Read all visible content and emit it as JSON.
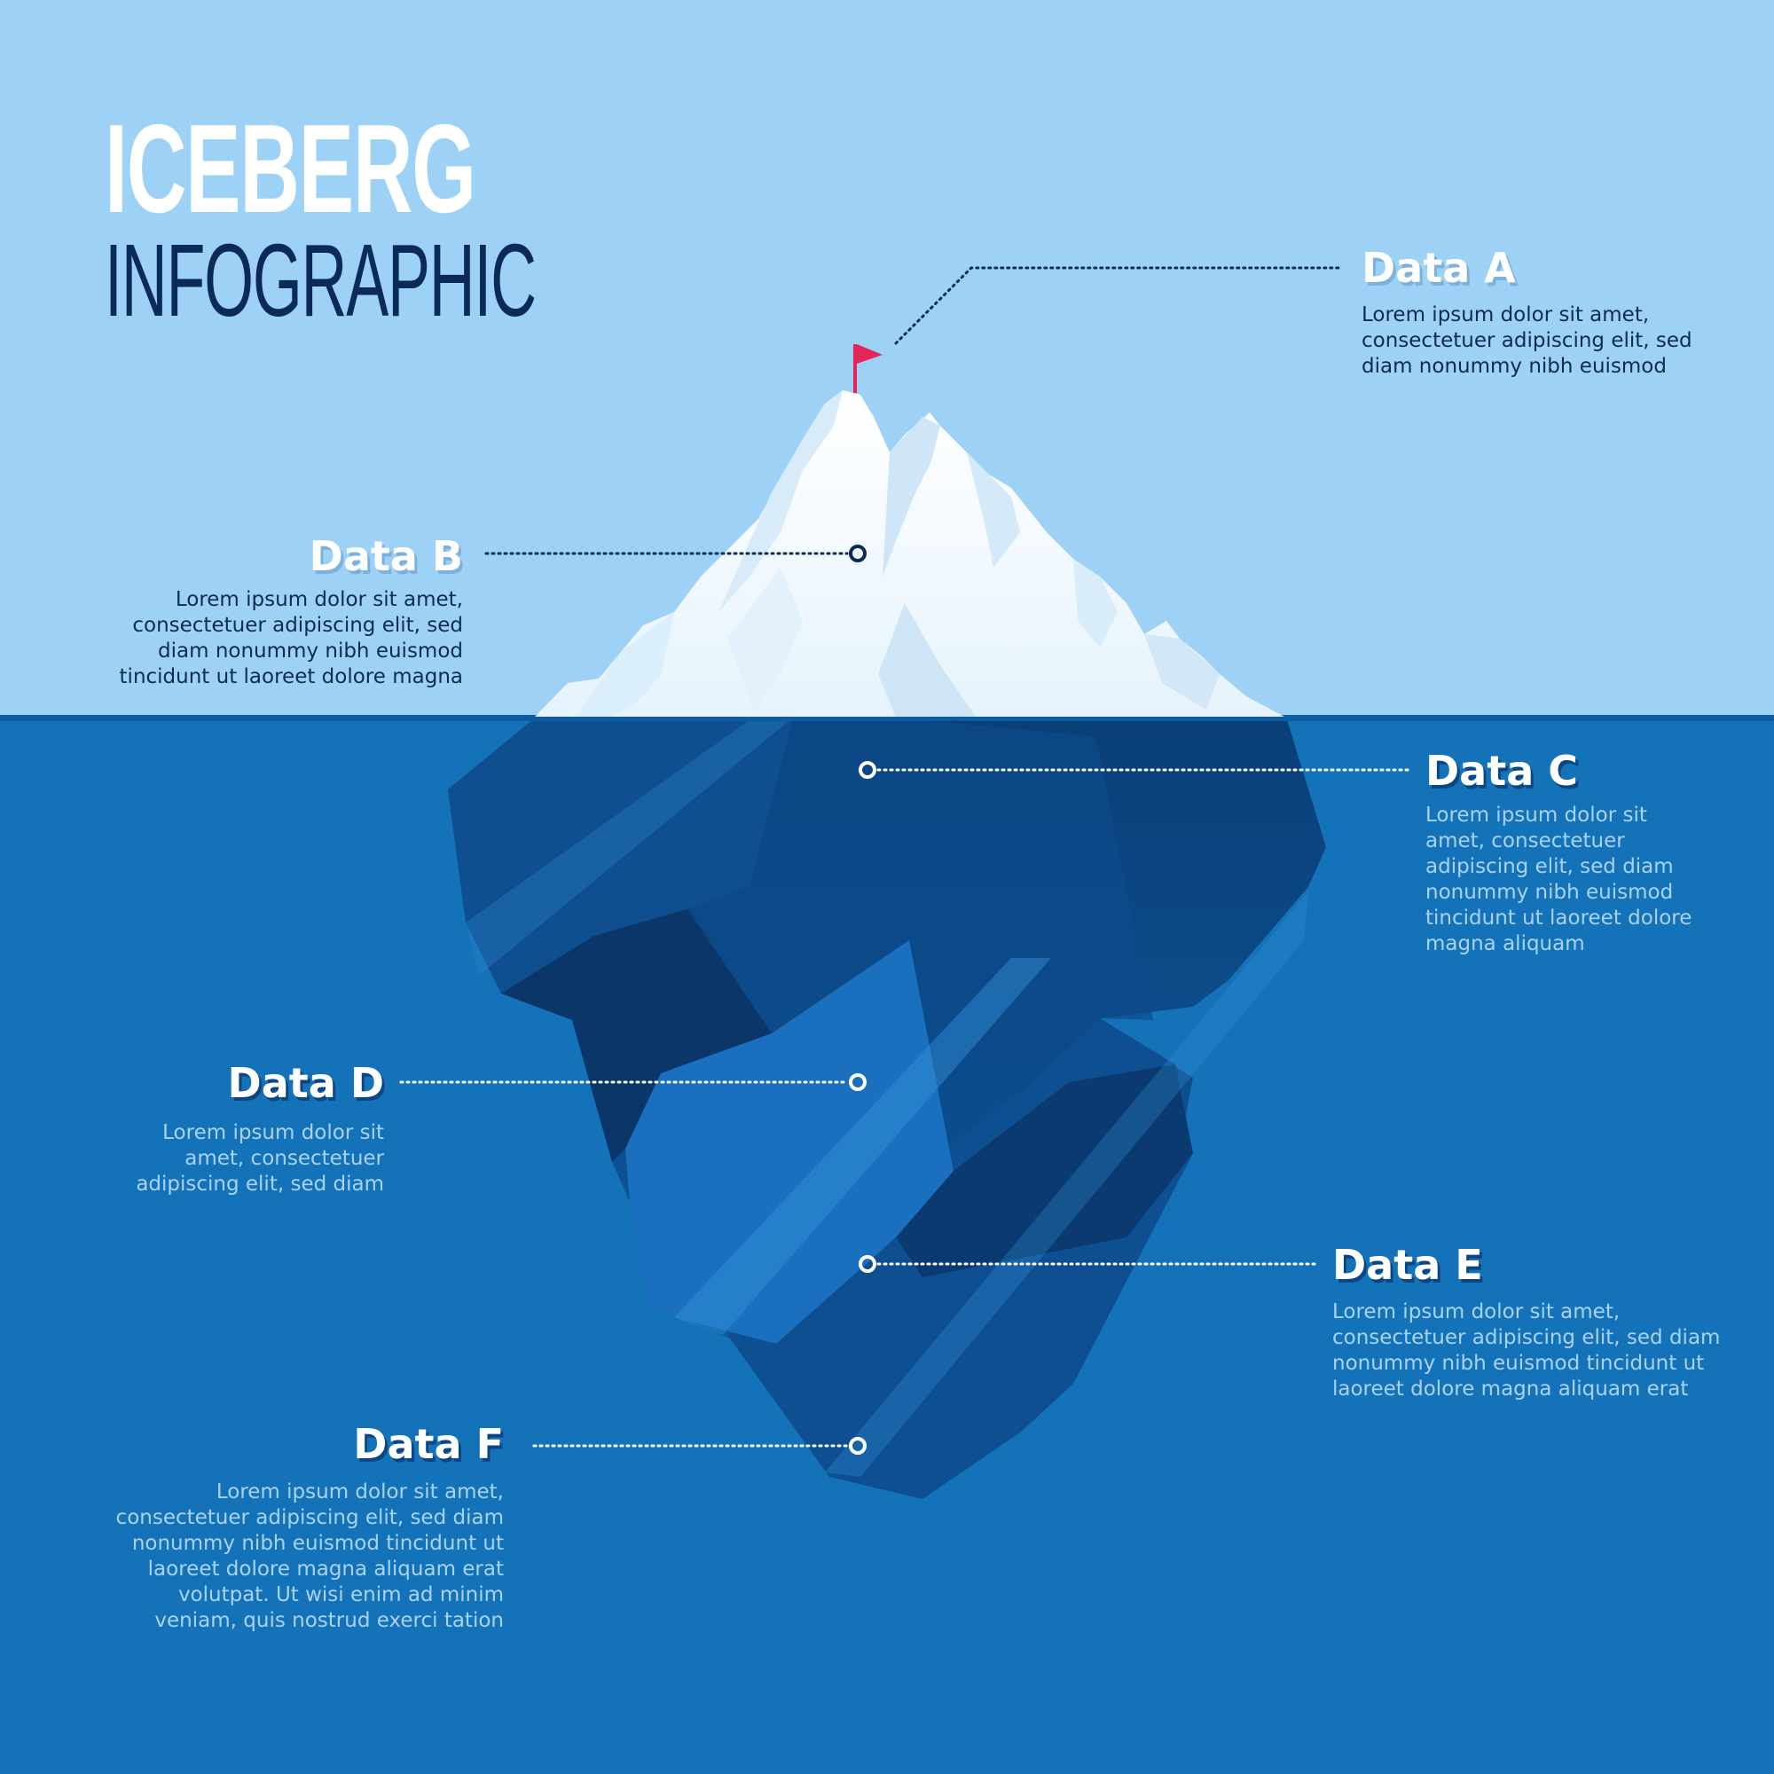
{
  "title": {
    "line1": "ICEBERG",
    "line2": "INFOGRAPHIC"
  },
  "items": [
    {
      "id": "a",
      "label": "Data A",
      "text": "Lorem ipsum dolor sit amet,\nconsectetuer adipiscing elit, sed\ndiam nonummy nibh euismod"
    },
    {
      "id": "b",
      "label": "Data B",
      "text": "Lorem ipsum dolor sit amet,\nconsectetuer adipiscing elit, sed\ndiam nonummy nibh euismod\ntincidunt ut laoreet dolore magna"
    },
    {
      "id": "c",
      "label": "Data C",
      "text": "Lorem ipsum dolor sit\namet, consectetuer\nadipiscing elit, sed diam\nnonummy nibh euismod\ntincidunt ut laoreet dolore\nmagna aliquam"
    },
    {
      "id": "d",
      "label": "Data D",
      "text": "Lorem ipsum dolor sit\namet, consectetuer\nadipiscing elit, sed diam"
    },
    {
      "id": "e",
      "label": "Data E",
      "text": "Lorem ipsum dolor sit amet,\nconsectetuer adipiscing elit, sed diam\nnonummy nibh euismod tincidunt ut\nlaoreet dolore magna aliquam erat"
    },
    {
      "id": "f",
      "label": "Data F",
      "text": "Lorem ipsum dolor sit amet,\nconsectetuer adipiscing elit, sed diam\nnonummy nibh euismod tincidunt ut\nlaoreet dolore magna aliquam erat\nvolutpat. Ut wisi enim ad minim\nveniam, quis nostrud exerci tation"
    }
  ],
  "colors": {
    "sky": "#9dd2f6",
    "water": "#1472b8",
    "waterline": "#0d5ca0",
    "navy": "#0b2a57",
    "flag": "#e6245a",
    "ice": "#ffffff"
  }
}
